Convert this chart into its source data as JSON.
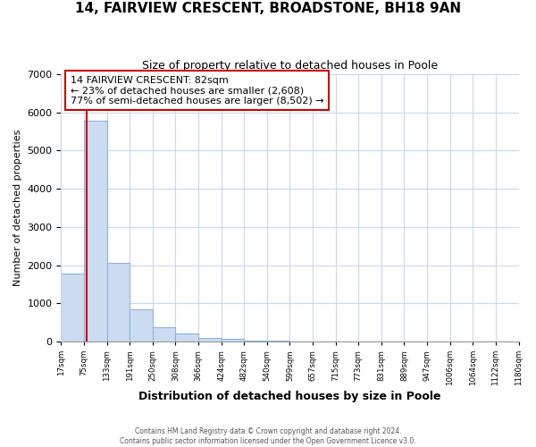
{
  "title": "14, FAIRVIEW CRESCENT, BROADSTONE, BH18 9AN",
  "subtitle": "Size of property relative to detached houses in Poole",
  "xlabel": "Distribution of detached houses by size in Poole",
  "ylabel": "Number of detached properties",
  "bin_labels": [
    "17sqm",
    "75sqm",
    "133sqm",
    "191sqm",
    "250sqm",
    "308sqm",
    "366sqm",
    "424sqm",
    "482sqm",
    "540sqm",
    "599sqm",
    "657sqm",
    "715sqm",
    "773sqm",
    "831sqm",
    "889sqm",
    "947sqm",
    "1006sqm",
    "1064sqm",
    "1122sqm",
    "1180sqm"
  ],
  "bar_values": [
    1780,
    5780,
    2060,
    840,
    370,
    220,
    105,
    60,
    30,
    15,
    8,
    3,
    0,
    0,
    0,
    0,
    0,
    0,
    0,
    0
  ],
  "bar_color": "#ccdcf0",
  "bar_edge_color": "#8db3e2",
  "property_line_color": "#cc0000",
  "ylim": [
    0,
    7000
  ],
  "yticks": [
    0,
    1000,
    2000,
    3000,
    4000,
    5000,
    6000,
    7000
  ],
  "annotation_line1": "14 FAIRVIEW CRESCENT: 82sqm",
  "annotation_line2": "← 23% of detached houses are smaller (2,608)",
  "annotation_line3": "77% of semi-detached houses are larger (8,502) →",
  "annotation_box_color": "#ffffff",
  "annotation_box_edge_color": "#cc0000",
  "footer_line1": "Contains HM Land Registry data © Crown copyright and database right 2024.",
  "footer_line2": "Contains public sector information licensed under the Open Government Licence v3.0.",
  "grid_color": "#c8d8ec",
  "background_color": "#ffffff",
  "prop_sqm": 82,
  "bin_start_sqm": [
    17,
    75,
    133,
    191,
    250,
    308,
    366,
    424,
    482,
    540,
    599,
    657,
    715,
    773,
    831,
    889,
    947,
    1006,
    1064,
    1122
  ]
}
